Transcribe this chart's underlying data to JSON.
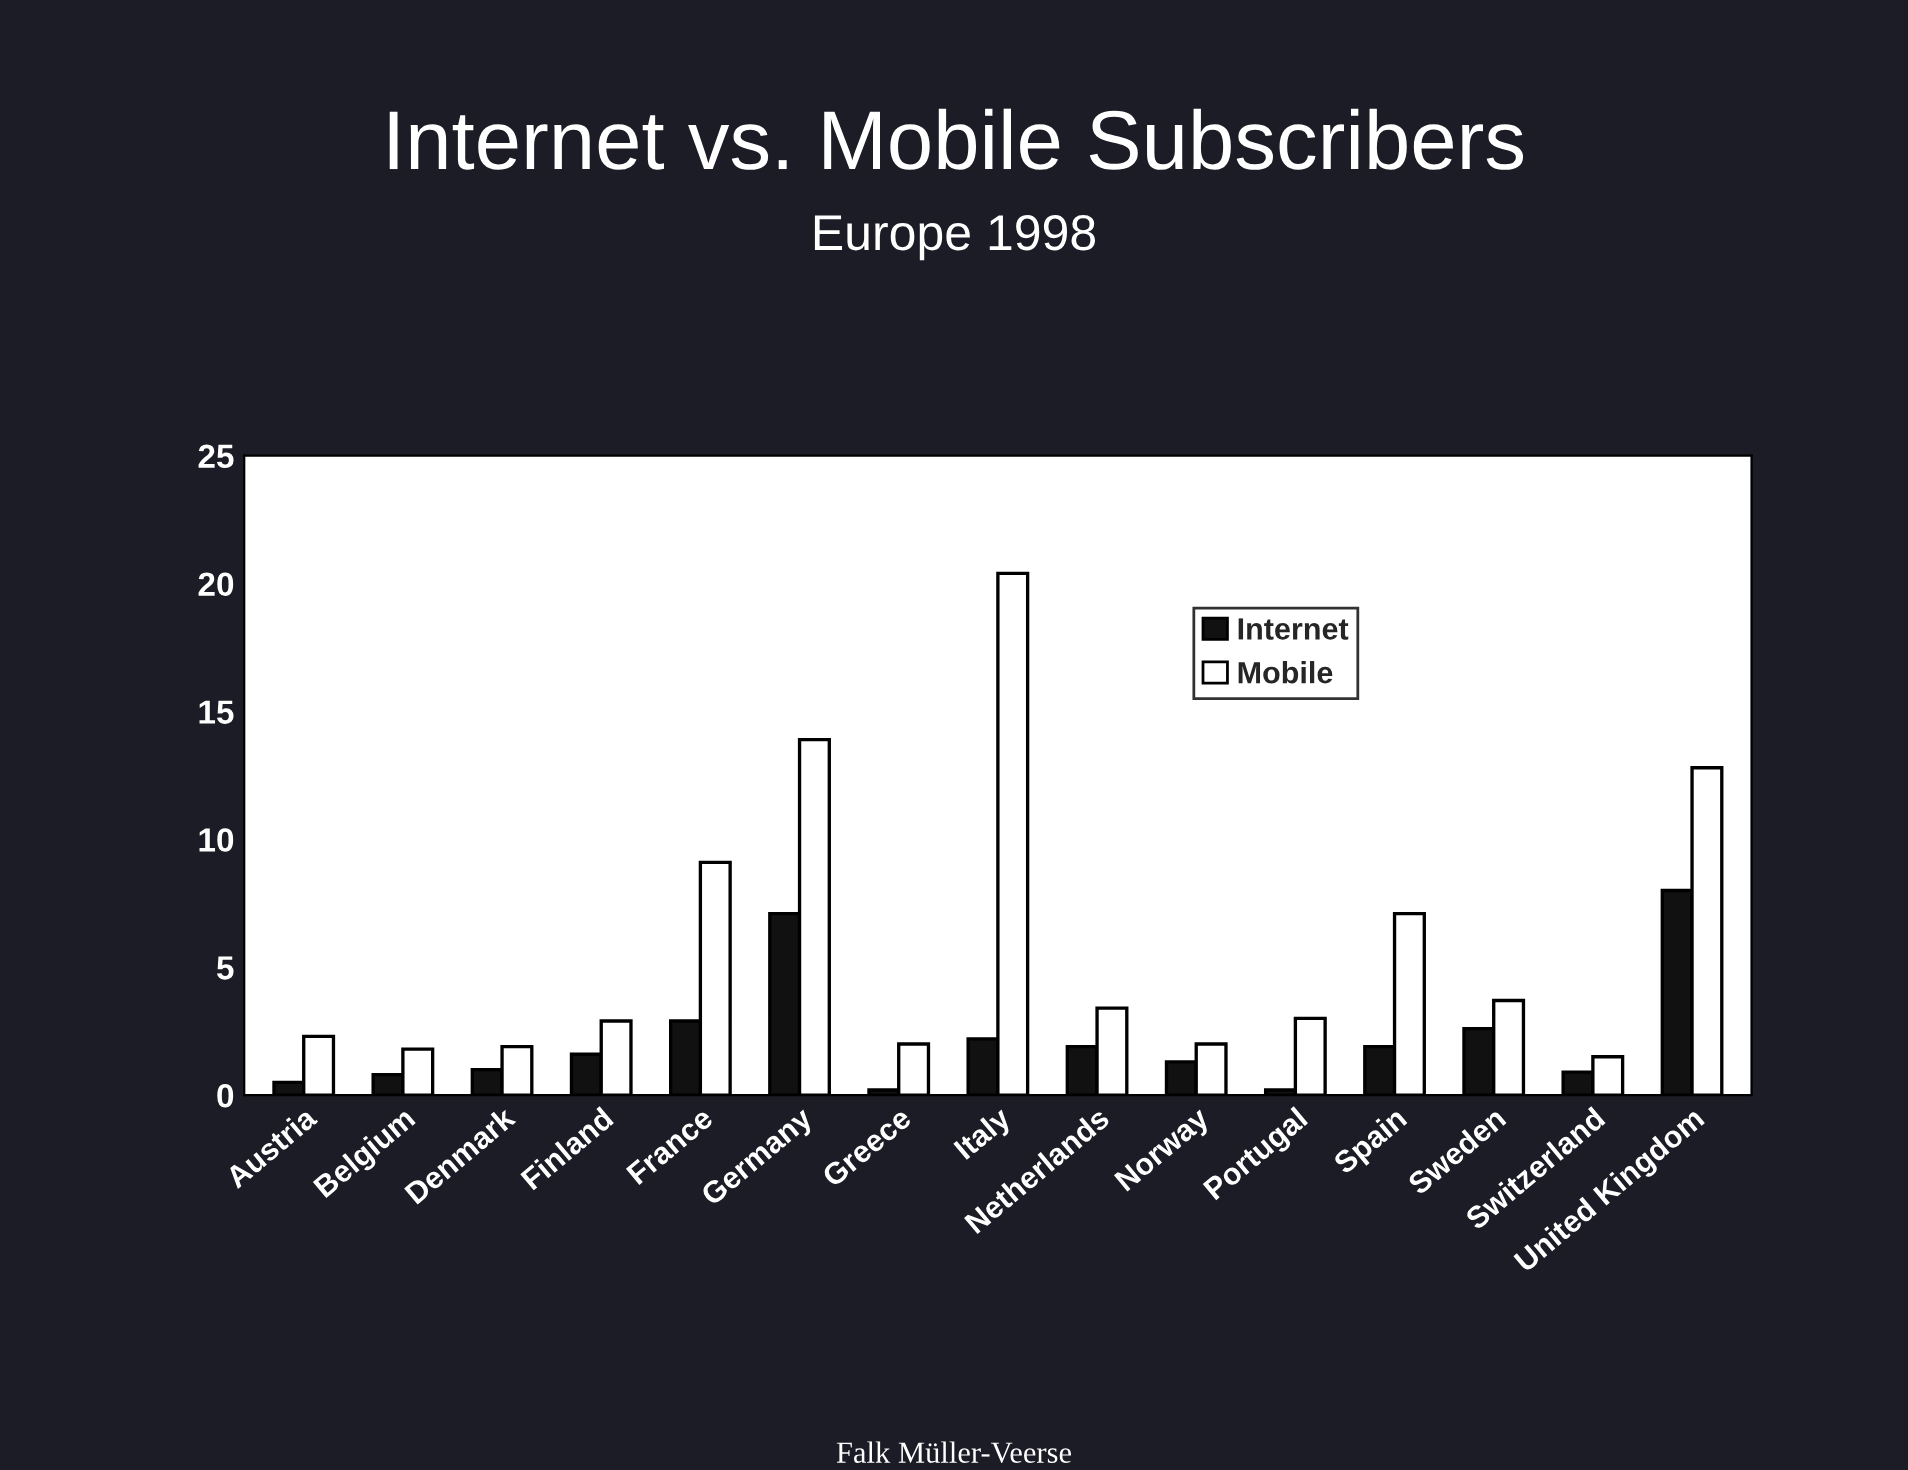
{
  "chart_data": {
    "type": "bar",
    "title": "Internet vs. Mobile Subscribers",
    "subtitle": "Europe 1998",
    "categories": [
      "Austria",
      "Belgium",
      "Denmark",
      "Finland",
      "France",
      "Germany",
      "Greece",
      "Italy",
      "Netherlands",
      "Norway",
      "Portugal",
      "Spain",
      "Sweden",
      "Switzerland",
      "United Kingdom"
    ],
    "series": [
      {
        "name": "Internet",
        "color": "#111111",
        "values": [
          0.5,
          0.8,
          1.0,
          1.6,
          2.9,
          7.1,
          0.2,
          2.2,
          1.9,
          1.3,
          0.2,
          1.9,
          2.6,
          0.9,
          8.0
        ]
      },
      {
        "name": "Mobile",
        "color": "#ffffff",
        "values": [
          2.3,
          1.8,
          1.9,
          2.9,
          9.1,
          13.9,
          2.0,
          20.4,
          3.4,
          2.0,
          3.0,
          7.1,
          3.7,
          1.5,
          12.8
        ]
      }
    ],
    "ylim": [
      0,
      25
    ],
    "yticks": [
      0,
      5,
      10,
      15,
      20,
      25
    ],
    "grid": false,
    "legend": "top right",
    "annotations": [
      "Falk Müller-Veerse"
    ]
  }
}
